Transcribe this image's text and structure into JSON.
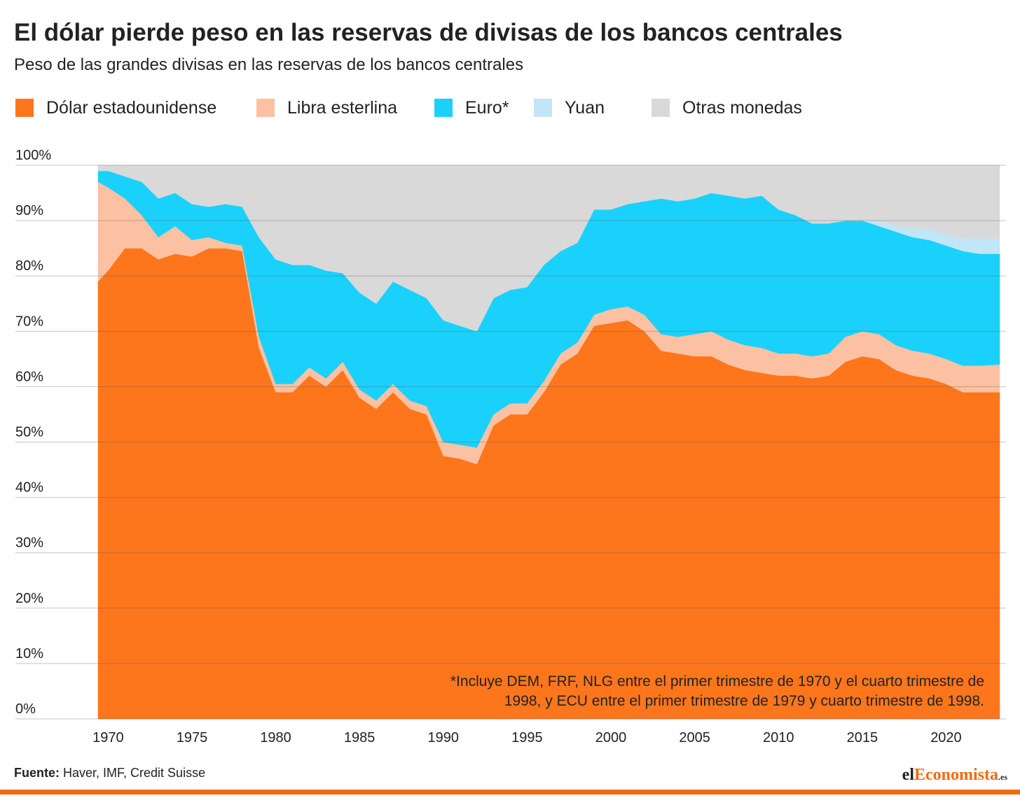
{
  "chart_data": {
    "type": "stacked-area",
    "title": "El dólar pierde peso en las reservas de divisas de los bancos centrales",
    "subtitle": "Peso de las grandes divisas en las reservas de los bancos centrales",
    "annotation": [
      "*Incluye DEM, FRF, NLG entre el primer trimestre de 1970 y el cuarto trimestre de",
      "1998, y ECU entre el primer trimestre de 1979 y cuarto trimestre de 1998."
    ],
    "source_label": "Fuente:",
    "source": "Haver, IMF, Credit Suisse",
    "logo": [
      "el",
      "Economista",
      ".es"
    ],
    "x": [
      1969.4,
      1970,
      1971,
      1972,
      1973,
      1974,
      1975,
      1976,
      1977,
      1978,
      1979,
      1980,
      1981,
      1982,
      1983,
      1984,
      1985,
      1986,
      1987,
      1988,
      1989,
      1990,
      1991,
      1992,
      1993,
      1994,
      1995,
      1996,
      1997,
      1998,
      1999,
      2000,
      2001,
      2002,
      2003,
      2004,
      2005,
      2006,
      2007,
      2008,
      2009,
      2010,
      2011,
      2012,
      2013,
      2014,
      2015,
      2016,
      2017,
      2018,
      2019,
      2020,
      2021,
      2022,
      2023.2
    ],
    "series": [
      {
        "name": "Dólar estadounidense",
        "color": "#fd761c",
        "values": [
          79,
          81,
          85,
          85,
          83,
          84,
          83.5,
          85,
          85,
          84.5,
          67,
          59,
          59,
          62,
          60,
          63,
          58,
          56,
          59,
          56,
          55,
          47.5,
          47,
          46,
          53,
          55,
          55,
          59,
          64,
          66,
          71,
          71.5,
          72,
          70,
          66.5,
          66,
          65.5,
          65.5,
          64,
          63,
          62.5,
          62,
          62,
          61.5,
          62,
          64.5,
          65.5,
          65,
          63,
          62,
          61.5,
          60.5,
          59,
          59,
          59
        ]
      },
      {
        "name": "Libra esterlina",
        "color": "#fcc1a2",
        "values": [
          18,
          15,
          9,
          6,
          4,
          5,
          3,
          2,
          1,
          1,
          2,
          1.5,
          1.5,
          1.5,
          1.5,
          1.5,
          1.5,
          1.5,
          1.5,
          1.5,
          1.5,
          2.5,
          2.5,
          3,
          2,
          2,
          2,
          2,
          2,
          2,
          2,
          2.5,
          2.5,
          3,
          3,
          3,
          4,
          4.5,
          4.5,
          4.5,
          4.5,
          4,
          4,
          4,
          4,
          4.5,
          4.5,
          4.5,
          4.5,
          4.5,
          4.5,
          4.5,
          4.8,
          4.8,
          5
        ]
      },
      {
        "name": "Euro*",
        "color": "#1ad1fb",
        "values": [
          2,
          3,
          4,
          6,
          7,
          6,
          6.5,
          5.5,
          7,
          7,
          18,
          22.5,
          21.5,
          18.5,
          19.5,
          16,
          17.5,
          17.5,
          18.5,
          20,
          19.5,
          22,
          21.5,
          21,
          21,
          20.5,
          21,
          21,
          18.5,
          18,
          19,
          18,
          18.5,
          20.5,
          24.5,
          24.5,
          24.5,
          25,
          26,
          26.5,
          27.5,
          26,
          25,
          24,
          23.5,
          21,
          20,
          19.5,
          20.5,
          20.5,
          20.5,
          20.5,
          20.7,
          20.2,
          20
        ]
      },
      {
        "name": "Yuan",
        "color": "#c0e6f7",
        "values": [
          0,
          0,
          0,
          0,
          0,
          0,
          0,
          0,
          0,
          0,
          0,
          0,
          0,
          0,
          0,
          0,
          0,
          0,
          0,
          0,
          0,
          0,
          0,
          0,
          0,
          0,
          0,
          0,
          0,
          0,
          0,
          0,
          0,
          0,
          0,
          0,
          0,
          0,
          0,
          0,
          0,
          0,
          0,
          0,
          0,
          0,
          0,
          1,
          1,
          1.5,
          2,
          2,
          2.3,
          2.7,
          2.8
        ]
      },
      {
        "name": "Otras monedas",
        "color": "#d9d9d9",
        "values": [
          1,
          1,
          2,
          3,
          6,
          5,
          7,
          7.5,
          7,
          7.5,
          13,
          17,
          18,
          18,
          19,
          19.5,
          23,
          25,
          21,
          22.5,
          24,
          28,
          29,
          30,
          24,
          22.5,
          22,
          18,
          15.5,
          14,
          8,
          8,
          7,
          6.5,
          6,
          6.5,
          6,
          5,
          5.5,
          6,
          5.5,
          8,
          9,
          10.5,
          10.5,
          10,
          10,
          10,
          11,
          11.5,
          11.5,
          12.5,
          13.2,
          13.3,
          13.2
        ]
      }
    ],
    "xlim": [
      1969.4,
      2023.2
    ],
    "xticks": [
      1970,
      1975,
      1980,
      1985,
      1990,
      1995,
      2000,
      2005,
      2010,
      2015,
      2020
    ],
    "ylim": [
      0,
      100
    ],
    "yticks": [
      {
        "value": 0,
        "label": "0%"
      },
      {
        "value": 10,
        "label": "10%"
      },
      {
        "value": 20,
        "label": "20%"
      },
      {
        "value": 30,
        "label": "30%"
      },
      {
        "value": 40,
        "label": "40%"
      },
      {
        "value": 50,
        "label": "50%"
      },
      {
        "value": 60,
        "label": "60%"
      },
      {
        "value": 70,
        "label": "70%"
      },
      {
        "value": 80,
        "label": "80%"
      },
      {
        "value": 90,
        "label": "90%"
      },
      {
        "value": 100,
        "label": "100%"
      }
    ],
    "grid": true,
    "legend": "top"
  }
}
